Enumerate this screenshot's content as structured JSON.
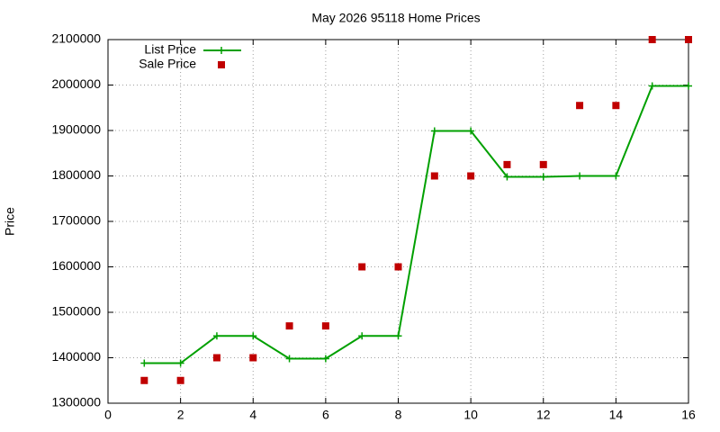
{
  "chart_data": {
    "type": "line",
    "title": "May 2026 95118 Home Prices",
    "y_label": "Price",
    "x": [
      1,
      2,
      3,
      4,
      5,
      6,
      7,
      8,
      9,
      10,
      11,
      12,
      13,
      14,
      15,
      16
    ],
    "series": [
      {
        "name": "List Price",
        "color": "#00a000",
        "mode": "linespoints",
        "values": [
          1388000,
          1388000,
          1448000,
          1448000,
          1398000,
          1398000,
          1448000,
          1448000,
          1899000,
          1899000,
          1798000,
          1798000,
          1800000,
          1800000,
          1998000,
          1998000
        ]
      },
      {
        "name": "Sale Price",
        "color": "#c00000",
        "mode": "points",
        "values": [
          1350000,
          1350000,
          1400000,
          1400000,
          1470000,
          1470000,
          1600000,
          1600000,
          1800000,
          1800000,
          1825000,
          1825000,
          1955000,
          1955000,
          2100000,
          2100000
        ]
      }
    ],
    "xlim": [
      0,
      16
    ],
    "xticks": [
      0,
      2,
      4,
      6,
      8,
      10,
      12,
      14,
      16
    ],
    "ylim": [
      1300000,
      2100000
    ],
    "yticks": [
      1300000,
      1400000,
      1500000,
      1600000,
      1700000,
      1800000,
      1900000,
      2000000,
      2100000
    ],
    "grid": true,
    "legend": "top-left"
  }
}
